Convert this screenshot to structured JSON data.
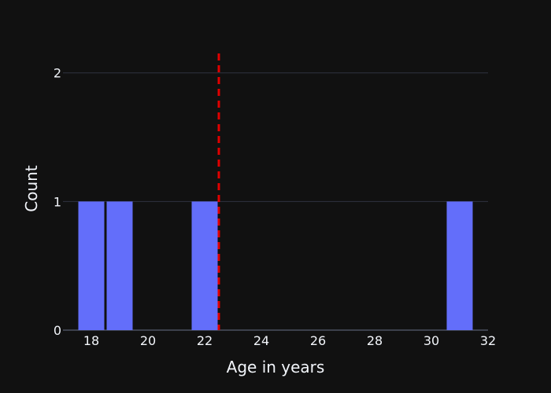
{
  "chart_data": {
    "type": "bar",
    "bins": [
      {
        "x0": 17.5,
        "x1": 18.5,
        "count": 1
      },
      {
        "x0": 18.5,
        "x1": 19.5,
        "count": 1
      },
      {
        "x0": 21.5,
        "x1": 22.5,
        "count": 1
      },
      {
        "x0": 30.5,
        "x1": 31.5,
        "count": 1
      }
    ],
    "xlabel": "Age in years",
    "ylabel": "Count",
    "xlim": [
      17,
      32
    ],
    "ylim": [
      0,
      2.2
    ],
    "xticks": [
      18,
      20,
      22,
      24,
      26,
      28,
      30,
      32
    ],
    "yticks": [
      0,
      1,
      2
    ],
    "vline": {
      "x": 22.5,
      "color": "#e00000",
      "style": "dashed"
    },
    "bar_color": "#636efa",
    "grid": true
  }
}
